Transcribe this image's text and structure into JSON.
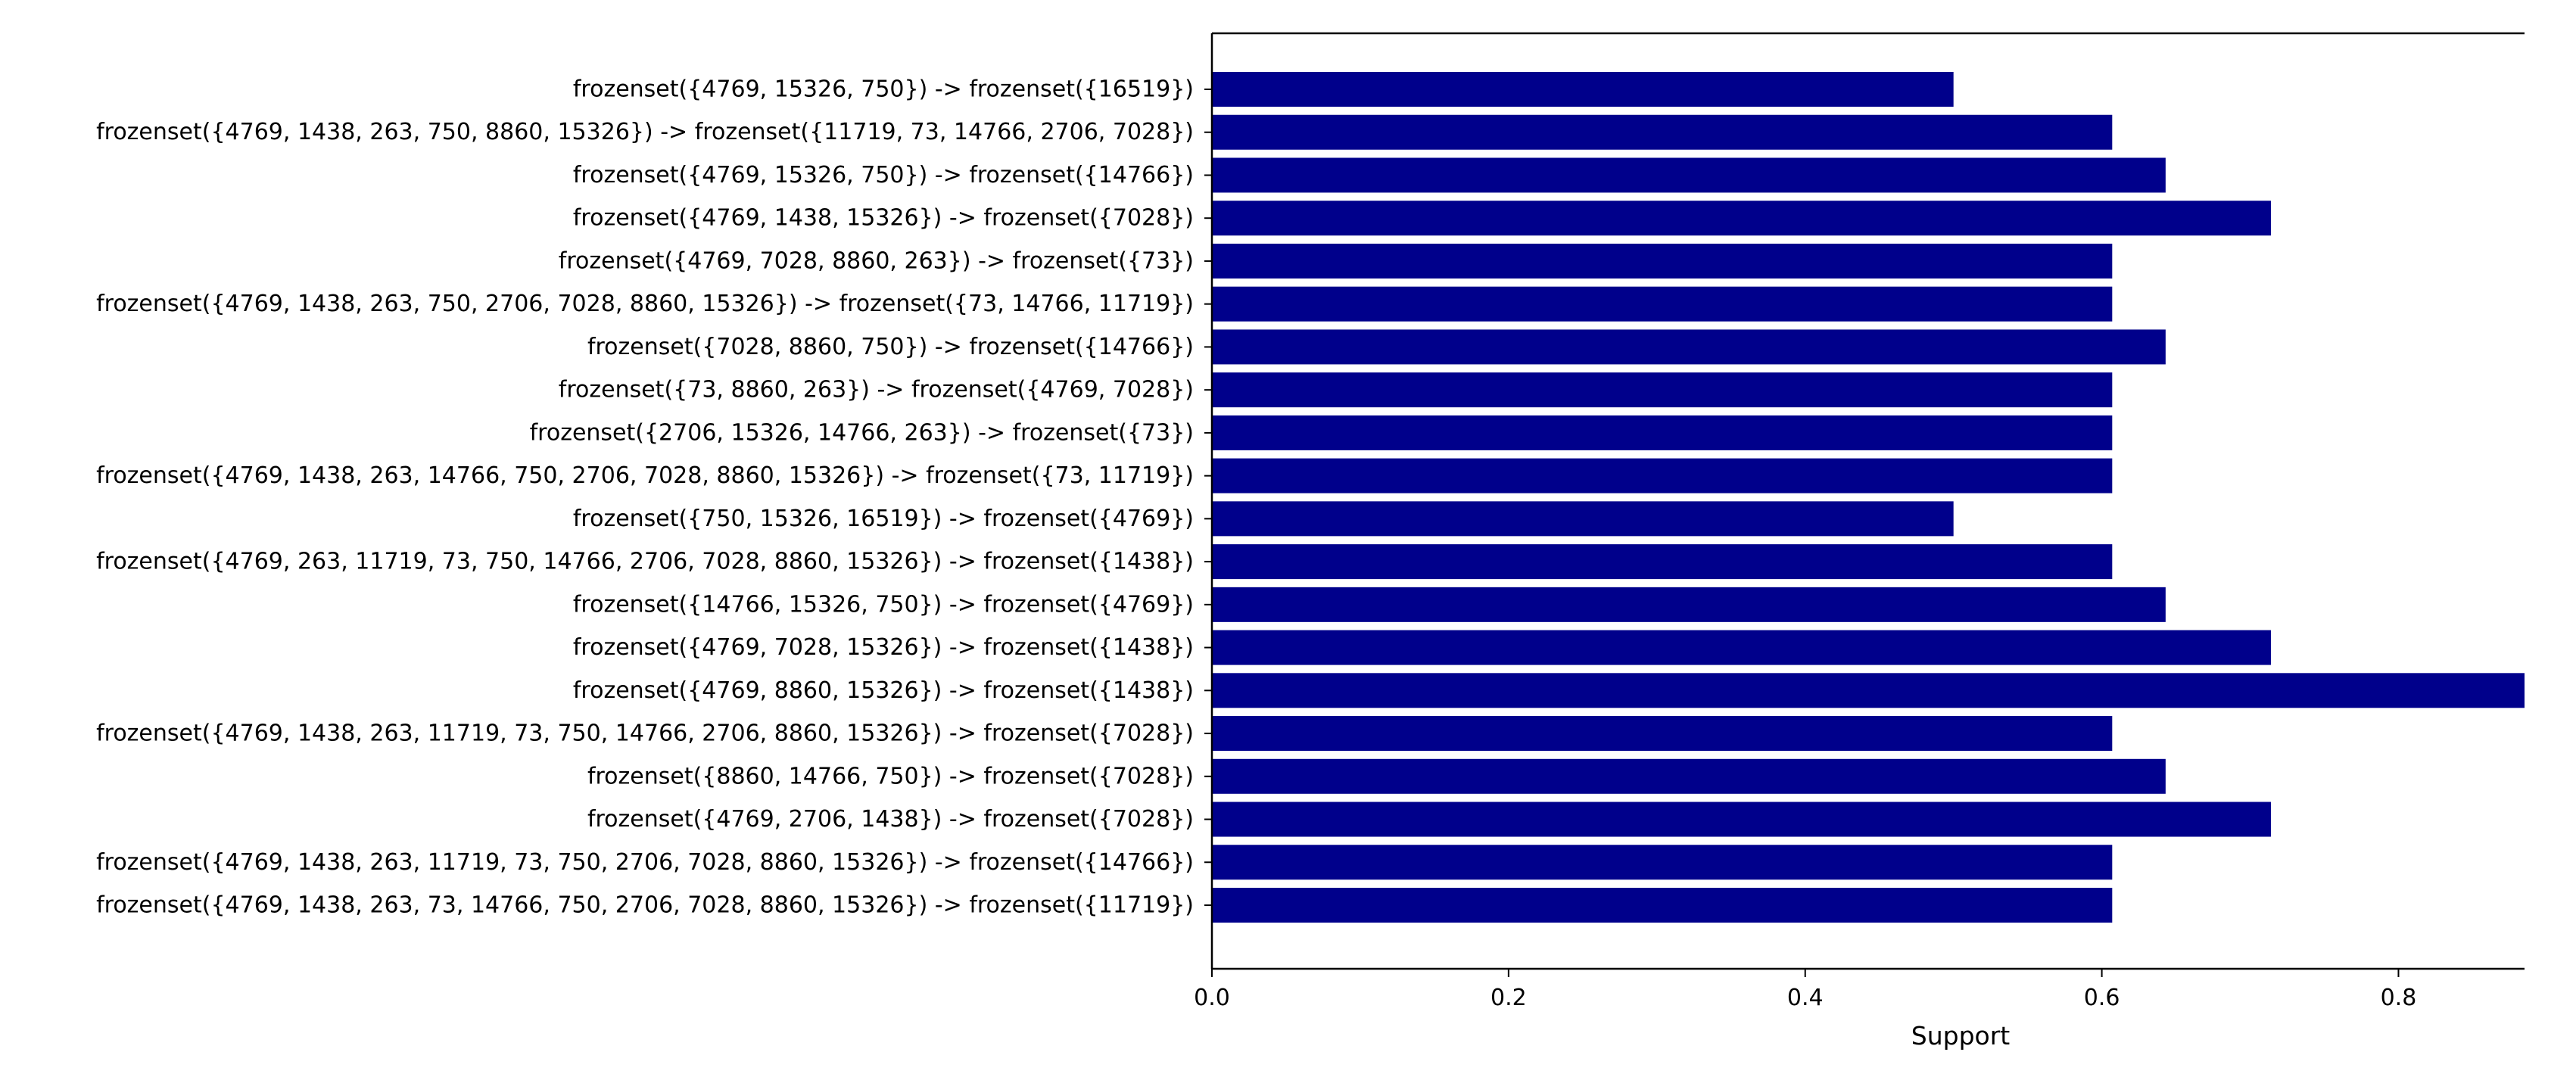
{
  "chart_data": {
    "type": "bar",
    "orientation": "horizontal",
    "title": "",
    "xlabel": "Support",
    "ylabel": "",
    "xlim": [
      0,
      0.885
    ],
    "xticks": [
      "0.0",
      "0.2",
      "0.4",
      "0.6",
      "0.8"
    ],
    "grid": false,
    "bar_color": "#00008b",
    "categories": [
      "frozenset({4769, 15326, 750}) -> frozenset({16519})",
      "frozenset({4769, 1438, 263, 750, 8860, 15326}) -> frozenset({11719, 73, 14766, 2706, 7028})",
      "frozenset({4769, 15326, 750}) -> frozenset({14766})",
      "frozenset({4769, 1438, 15326}) -> frozenset({7028})",
      "frozenset({4769, 7028, 8860, 263}) -> frozenset({73})",
      "frozenset({4769, 1438, 263, 750, 2706, 7028, 8860, 15326}) -> frozenset({73, 14766, 11719})",
      "frozenset({7028, 8860, 750}) -> frozenset({14766})",
      "frozenset({73, 8860, 263}) -> frozenset({4769, 7028})",
      "frozenset({2706, 15326, 14766, 263}) -> frozenset({73})",
      "frozenset({4769, 1438, 263, 14766, 750, 2706, 7028, 8860, 15326}) -> frozenset({73, 11719})",
      "frozenset({750, 15326, 16519}) -> frozenset({4769})",
      "frozenset({4769, 263, 11719, 73, 750, 14766, 2706, 7028, 8860, 15326}) -> frozenset({1438})",
      "frozenset({14766, 15326, 750}) -> frozenset({4769})",
      "frozenset({4769, 7028, 15326}) -> frozenset({1438})",
      "frozenset({4769, 8860, 15326}) -> frozenset({1438})",
      "frozenset({4769, 1438, 263, 11719, 73, 750, 14766, 2706, 8860, 15326}) -> frozenset({7028})",
      "frozenset({8860, 14766, 750}) -> frozenset({7028})",
      "frozenset({4769, 2706, 1438}) -> frozenset({7028})",
      "frozenset({4769, 1438, 263, 11719, 73, 750, 2706, 7028, 8860, 15326}) -> frozenset({14766})",
      "frozenset({4769, 1438, 263, 73, 14766, 750, 2706, 7028, 8860, 15326}) -> frozenset({11719})"
    ],
    "values": [
      0.5,
      0.607,
      0.643,
      0.714,
      0.607,
      0.607,
      0.643,
      0.607,
      0.607,
      0.607,
      0.5,
      0.607,
      0.643,
      0.714,
      0.893,
      0.607,
      0.643,
      0.714,
      0.607,
      0.607
    ]
  }
}
